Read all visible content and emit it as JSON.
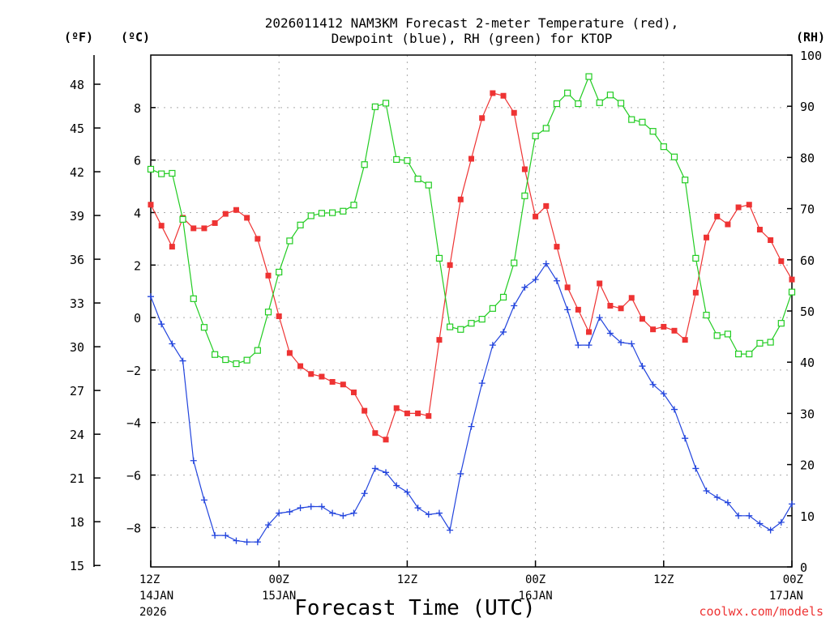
{
  "chart_data": {
    "type": "line",
    "title_line1": "2026011412 NAM3KM Forecast 2-meter Temperature (red),",
    "title_line2": "Dewpoint (blue), RH (green) for KTOP",
    "xlabel": "Forecast Time (UTC)",
    "credit": "coolwx.com/models",
    "units": {
      "fahrenheit": "(ºF)",
      "celsius": "(ºC)",
      "rh": "(RH)"
    },
    "x_unit": "forecast hour",
    "xlim": [
      0,
      60
    ],
    "ylim_celsius": [
      -9.5,
      10
    ],
    "ylim_fahrenheit": [
      14.9,
      50
    ],
    "ylim_rh": [
      0,
      100
    ],
    "fahrenheit_ticks": [
      "48",
      "45",
      "42",
      "39",
      "36",
      "33",
      "30",
      "27",
      "24",
      "21",
      "18",
      "15"
    ],
    "celsius_ticks": [
      "8",
      "6",
      "4",
      "2",
      "0",
      "−2",
      "−4",
      "−6",
      "−8"
    ],
    "rh_ticks": [
      "100",
      "90",
      "80",
      "70",
      "60",
      "50",
      "40",
      "30",
      "20",
      "10",
      "0"
    ],
    "x_ticks": [
      {
        "hour": 0,
        "line1": "12Z",
        "line2": "14JAN",
        "line3": "2026"
      },
      {
        "hour": 12,
        "line1": "00Z",
        "line2": "15JAN",
        "line3": ""
      },
      {
        "hour": 24,
        "line1": "12Z",
        "line2": "",
        "line3": ""
      },
      {
        "hour": 36,
        "line1": "00Z",
        "line2": "16JAN",
        "line3": ""
      },
      {
        "hour": 48,
        "line1": "12Z",
        "line2": "",
        "line3": ""
      },
      {
        "hour": 60,
        "line1": "00Z",
        "line2": "17JAN",
        "line3": ""
      }
    ],
    "series": [
      {
        "name": "Temperature",
        "axis": "celsius",
        "color": "#ee3333",
        "marker": "filled-square",
        "x": [
          0,
          1,
          2,
          3,
          4,
          5,
          6,
          7,
          8,
          9,
          10,
          11,
          12,
          13,
          14,
          15,
          16,
          17,
          18,
          19,
          20,
          21,
          22,
          23,
          24,
          25,
          26,
          27,
          28,
          29,
          30,
          31,
          32,
          33,
          34,
          35,
          36,
          37,
          38,
          39,
          40,
          41,
          42,
          43,
          44,
          45,
          46,
          47,
          48,
          49,
          50,
          51,
          52,
          53,
          54,
          55,
          56,
          57,
          58,
          59,
          60
        ],
        "values": [
          4.3,
          3.5,
          2.7,
          3.8,
          3.4,
          3.4,
          3.6,
          3.95,
          4.1,
          3.8,
          3.0,
          1.6,
          0.05,
          -1.35,
          -1.85,
          -2.15,
          -2.25,
          -2.45,
          -2.55,
          -2.85,
          -3.55,
          -4.4,
          -4.65,
          -3.45,
          -3.65,
          -3.65,
          -3.75,
          -0.85,
          2.0,
          4.5,
          6.05,
          7.6,
          8.55,
          8.45,
          7.8,
          5.65,
          3.85,
          4.25,
          2.7,
          1.15,
          0.3,
          -0.55,
          1.3,
          0.45,
          0.35,
          0.75,
          -0.05,
          -0.45,
          -0.35,
          -0.5,
          -0.85,
          0.95,
          3.05,
          3.85,
          3.55,
          4.2,
          4.3,
          3.35,
          2.95,
          2.15,
          1.45
        ]
      },
      {
        "name": "Dewpoint",
        "axis": "celsius",
        "color": "#2244dd",
        "marker": "plus",
        "x": [
          0,
          1,
          2,
          3,
          4,
          5,
          6,
          7,
          8,
          9,
          10,
          11,
          12,
          13,
          14,
          15,
          16,
          17,
          18,
          19,
          20,
          21,
          22,
          23,
          24,
          25,
          26,
          27,
          28,
          29,
          30,
          31,
          32,
          33,
          34,
          35,
          36,
          37,
          38,
          39,
          40,
          41,
          42,
          43,
          44,
          45,
          46,
          47,
          48,
          49,
          50,
          51,
          52,
          53,
          54,
          55,
          56,
          57,
          58,
          59,
          60
        ],
        "values": [
          0.8,
          -0.25,
          -1.0,
          -1.65,
          -5.45,
          -6.95,
          -8.3,
          -8.3,
          -8.5,
          -8.55,
          -8.55,
          -7.9,
          -7.45,
          -7.4,
          -7.25,
          -7.2,
          -7.2,
          -7.45,
          -7.55,
          -7.45,
          -6.7,
          -5.75,
          -5.9,
          -6.4,
          -6.65,
          -7.25,
          -7.5,
          -7.45,
          -8.1,
          -5.95,
          -4.15,
          -2.5,
          -1.05,
          -0.55,
          0.45,
          1.15,
          1.45,
          2.05,
          1.4,
          0.3,
          -1.05,
          -1.05,
          0.0,
          -0.6,
          -0.95,
          -1.0,
          -1.85,
          -2.55,
          -2.9,
          -3.5,
          -4.6,
          -5.75,
          -6.6,
          -6.85,
          -7.05,
          -7.55,
          -7.55,
          -7.85,
          -8.1,
          -7.8,
          -7.1
        ]
      },
      {
        "name": "RH",
        "axis": "rh",
        "color": "#22cc22",
        "marker": "open-square",
        "x": [
          0,
          1,
          2,
          3,
          4,
          5,
          6,
          7,
          8,
          9,
          10,
          11,
          12,
          13,
          14,
          15,
          16,
          17,
          18,
          19,
          20,
          21,
          22,
          23,
          24,
          25,
          26,
          27,
          28,
          29,
          30,
          31,
          32,
          33,
          34,
          35,
          36,
          37,
          38,
          39,
          40,
          41,
          42,
          43,
          44,
          45,
          46,
          47,
          48,
          49,
          50,
          51,
          52,
          53,
          54,
          55,
          56,
          57,
          58,
          59,
          60
        ],
        "values": [
          77.7,
          76.8,
          76.9,
          67.9,
          52.4,
          46.8,
          41.5,
          40.5,
          39.7,
          40.4,
          42.3,
          49.8,
          57.6,
          63.7,
          66.8,
          68.6,
          69.1,
          69.2,
          69.5,
          70.7,
          78.6,
          89.9,
          90.6,
          79.6,
          79.4,
          75.8,
          74.6,
          60.3,
          46.9,
          46.4,
          47.6,
          48.4,
          50.5,
          52.7,
          59.4,
          72.5,
          84.2,
          85.7,
          90.5,
          92.6,
          90.5,
          95.8,
          90.7,
          92.2,
          90.6,
          87.4,
          86.9,
          85.1,
          82.1,
          80.1,
          75.6,
          60.3,
          49.2,
          45.2,
          45.5,
          41.6,
          41.6,
          43.7,
          43.9,
          47.6,
          53.7
        ]
      }
    ]
  }
}
